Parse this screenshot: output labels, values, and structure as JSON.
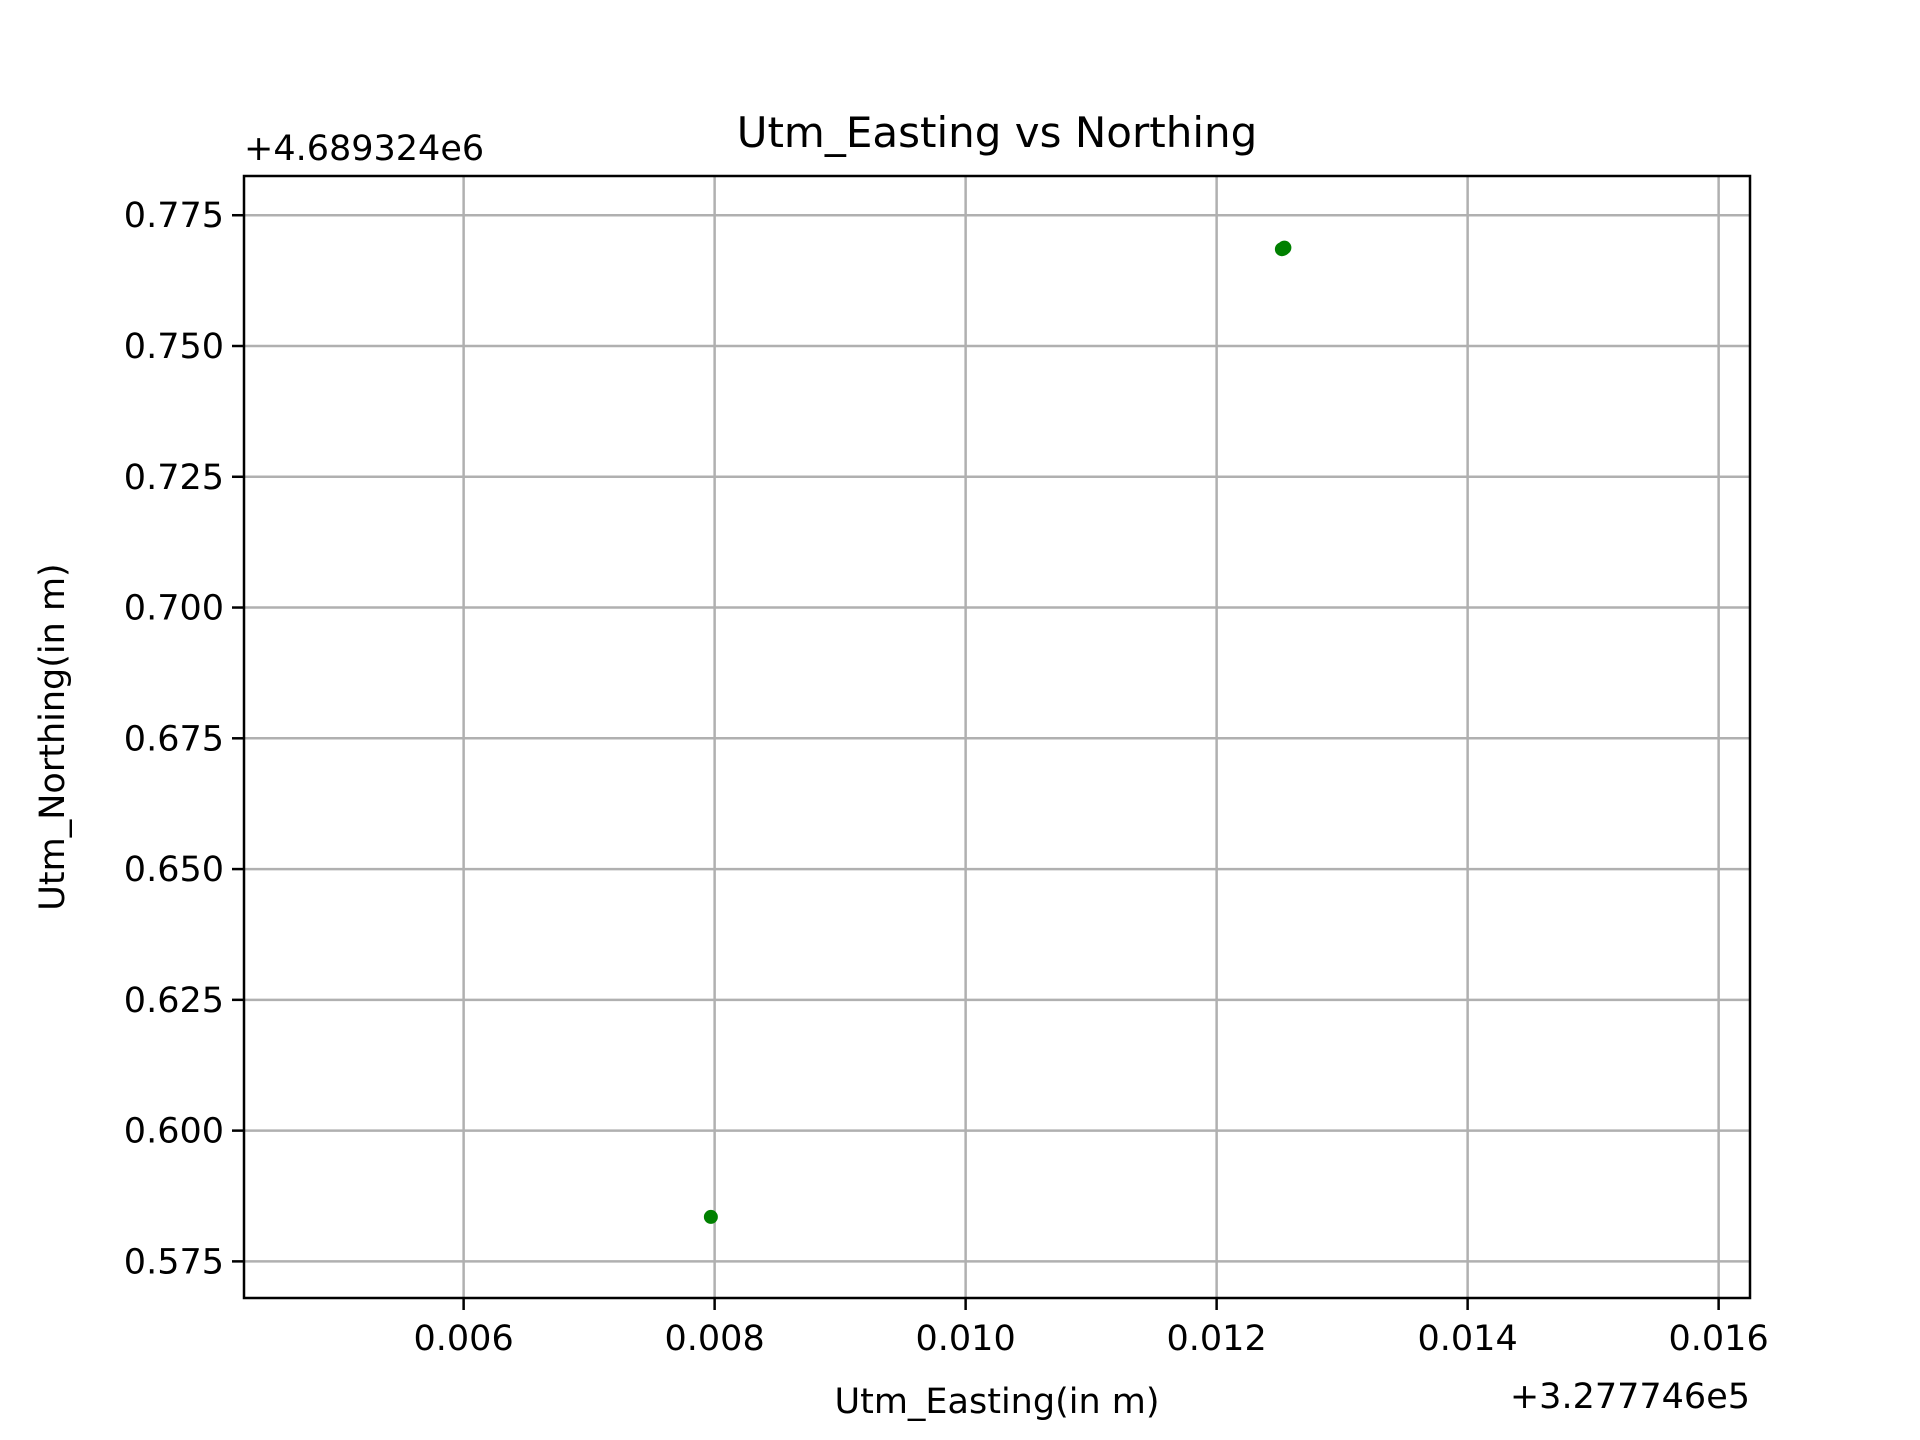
{
  "chart_data": {
    "type": "scatter",
    "title": "Utm_Easting vs Northing",
    "xlabel": "Utm_Easting(in m)",
    "ylabel": "Utm_Northing(in m)",
    "x_offset_label": "+3.277746e5",
    "y_offset_label": "+4.689324e6",
    "xlim": [
      0.00425,
      0.01625
    ],
    "ylim": [
      0.568,
      0.7825
    ],
    "xticks": [
      0.006,
      0.008,
      0.01,
      0.012,
      0.014,
      0.016
    ],
    "xtick_labels": [
      "0.006",
      "0.008",
      "0.010",
      "0.012",
      "0.014",
      "0.016"
    ],
    "yticks": [
      0.575,
      0.6,
      0.625,
      0.65,
      0.675,
      0.7,
      0.725,
      0.75,
      0.775
    ],
    "ytick_labels": [
      "0.575",
      "0.600",
      "0.625",
      "0.650",
      "0.675",
      "0.700",
      "0.725",
      "0.750",
      "0.775"
    ],
    "grid": true,
    "marker_color": "#008000",
    "points": [
      {
        "x": 0.00797,
        "y": 0.5835
      },
      {
        "x": 0.01252,
        "y": 0.7685
      },
      {
        "x": 0.01254,
        "y": 0.7688
      },
      {
        "x": 0.01253,
        "y": 0.7686
      }
    ]
  }
}
